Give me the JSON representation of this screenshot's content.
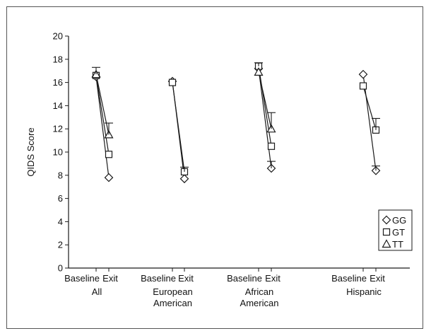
{
  "chart_data": {
    "type": "line",
    "ylabel": "QIDS Score",
    "ylim": [
      0,
      20
    ],
    "yticks": [
      0,
      2,
      4,
      6,
      8,
      10,
      12,
      14,
      16,
      18,
      20
    ],
    "groups": [
      {
        "name": "All",
        "label_lines": [
          "All"
        ]
      },
      {
        "name": "European American",
        "label_lines": [
          "European",
          "American"
        ]
      },
      {
        "name": "African American",
        "label_lines": [
          "African",
          "American"
        ]
      },
      {
        "name": "Hispanic",
        "label_lines": [
          "Hispanic"
        ]
      }
    ],
    "timepoints": [
      "Baseline",
      "Exit"
    ],
    "series": [
      {
        "name": "GG",
        "marker": "diamond",
        "values": [
          [
            16.5,
            7.8
          ],
          [
            16.1,
            7.7
          ],
          [
            17.2,
            8.6
          ],
          [
            16.7,
            8.4
          ]
        ]
      },
      {
        "name": "GT",
        "marker": "square",
        "values": [
          [
            16.6,
            9.8
          ],
          [
            16.0,
            8.3
          ],
          [
            17.4,
            10.5
          ],
          [
            15.7,
            11.9
          ]
        ]
      },
      {
        "name": "TT",
        "marker": "triangle",
        "values": [
          [
            16.7,
            11.5
          ],
          [
            null,
            null
          ],
          [
            16.9,
            12.0
          ],
          [
            null,
            null
          ]
        ]
      }
    ],
    "error_bars": [
      {
        "group": 0,
        "timepoint": 0,
        "value": 16.7,
        "upper": 17.3
      },
      {
        "group": 0,
        "timepoint": 1,
        "value": 11.5,
        "upper": 12.5
      },
      {
        "group": 1,
        "timepoint": 1,
        "value": 8.3,
        "upper": 8.7
      },
      {
        "group": 2,
        "timepoint": 0,
        "value": 17.4,
        "upper": 17.7
      },
      {
        "group": 2,
        "timepoint": 1,
        "value": 12.0,
        "upper": 13.4
      },
      {
        "group": 2,
        "timepoint": 1,
        "value": 8.6,
        "lower": 9.2
      },
      {
        "group": 3,
        "timepoint": 1,
        "value": 11.9,
        "upper": 12.9
      },
      {
        "group": 3,
        "timepoint": 1,
        "value": 8.4,
        "lower": 8.8
      }
    ],
    "legend": {
      "position": "bottom-right",
      "entries": [
        "GG",
        "GT",
        "TT"
      ]
    },
    "grid": false
  }
}
